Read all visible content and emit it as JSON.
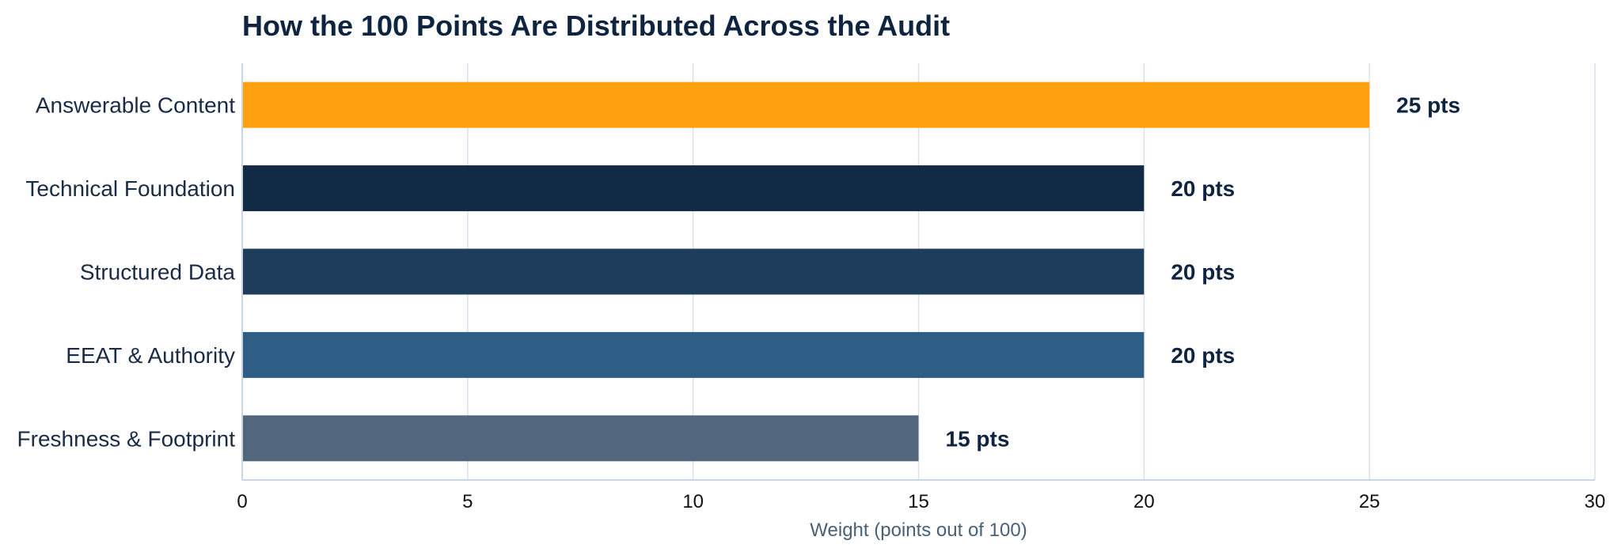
{
  "chart_data": {
    "type": "bar",
    "orientation": "horizontal",
    "title": "How the 100 Points Are Distributed Across the Audit",
    "xlabel": "Weight (points out of 100)",
    "ylabel": "",
    "xlim": [
      0,
      30
    ],
    "xticks": [
      0,
      5,
      10,
      15,
      20,
      25,
      30
    ],
    "grid": true,
    "categories": [
      "Answerable Content",
      "Technical Foundation",
      "Structured Data",
      "EEAT & Authority",
      "Freshness & Footprint"
    ],
    "values": [
      25,
      20,
      20,
      20,
      15
    ],
    "data_labels": [
      "25 pts",
      "20 pts",
      "20 pts",
      "20 pts",
      "15 pts"
    ],
    "colors": [
      "#ffa00f",
      "#112a45",
      "#1e3c5c",
      "#2e5d85",
      "#52667e"
    ]
  }
}
